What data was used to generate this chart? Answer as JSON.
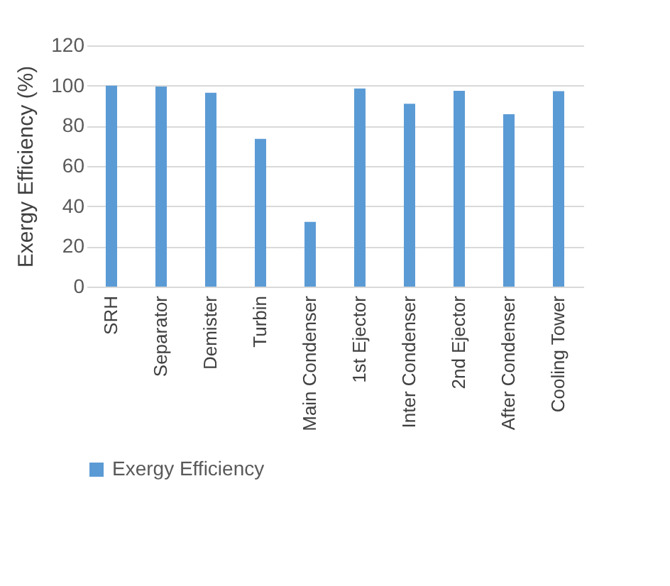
{
  "chart_data": {
    "type": "bar",
    "ylabel": "Exergy Efficiency (%)",
    "categories": [
      "SRH",
      "Separator",
      "Demister",
      "Turbin",
      "Main Condenser",
      "1st Ejector",
      "Inter Condenser",
      "2nd Ejector",
      "After Condenser",
      "Cooling Tower"
    ],
    "series": [
      {
        "name": "Exergy Efficiency",
        "color": "#5b9bd5",
        "values": [
          100,
          99.5,
          96.4,
          73.5,
          32.2,
          98.6,
          91,
          97.4,
          85.8,
          97.2
        ]
      }
    ],
    "ylim": [
      0,
      120
    ],
    "yticks": [
      0,
      20,
      40,
      60,
      80,
      100,
      120
    ],
    "grid": "y",
    "legend": "bottom"
  }
}
